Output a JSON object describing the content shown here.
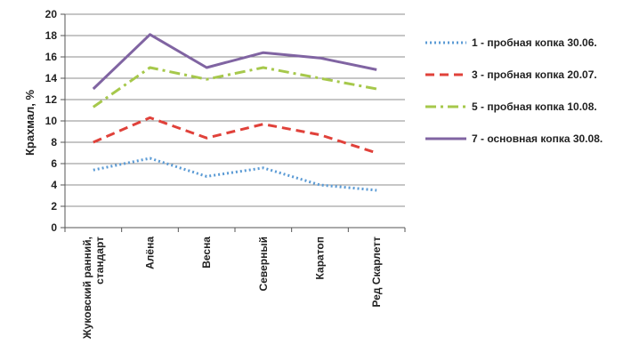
{
  "chart_data": {
    "type": "line",
    "title": "",
    "xlabel": "",
    "ylabel": "Крахмал, %",
    "ylim": [
      0,
      20
    ],
    "ytick_step": 2,
    "yticks": [
      "0",
      "2",
      "4",
      "6",
      "8",
      "10",
      "12",
      "14",
      "16",
      "18",
      "20"
    ],
    "grid": true,
    "legend_position": "right",
    "categories": [
      [
        "Жуковский ранний,",
        "стандарт"
      ],
      [
        "Алёна"
      ],
      [
        "Весна"
      ],
      [
        "Северный"
      ],
      [
        "Каратоп"
      ],
      [
        "Ред Скарлетт"
      ]
    ],
    "series": [
      {
        "name": "1 - пробная копка 30.06.",
        "color": "#5b9bd5",
        "dash": "dotted",
        "values": [
          5.4,
          6.5,
          4.8,
          5.6,
          4.0,
          3.5
        ]
      },
      {
        "name": "3 - пробная копка 20.07.",
        "color": "#e0413a",
        "dash": "dashed",
        "values": [
          8.0,
          10.3,
          8.4,
          9.7,
          8.7,
          7.0
        ]
      },
      {
        "name": "5 - пробная копка 10.08.",
        "color": "#a6c84b",
        "dash": "dashdot",
        "values": [
          11.3,
          15.0,
          13.9,
          15.0,
          14.0,
          13.0
        ]
      },
      {
        "name": "7 - основная копка 30.08.",
        "color": "#8064a2",
        "dash": "solid",
        "values": [
          13.0,
          18.1,
          15.0,
          16.4,
          15.9,
          14.8
        ]
      }
    ]
  }
}
